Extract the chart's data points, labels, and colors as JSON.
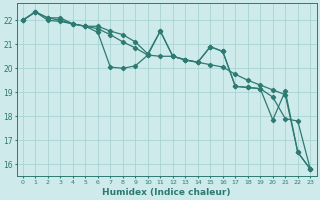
{
  "xlabel": "Humidex (Indice chaleur)",
  "ylabel": "",
  "background_color": "#ceeaea",
  "grid_color": "#aad4d4",
  "line_color": "#2d7a72",
  "x_values": [
    0,
    1,
    2,
    3,
    4,
    5,
    6,
    7,
    8,
    9,
    10,
    11,
    12,
    13,
    14,
    15,
    16,
    17,
    18,
    19,
    20,
    21,
    22,
    23
  ],
  "series1": [
    22.0,
    22.35,
    22.1,
    22.1,
    21.85,
    21.75,
    21.75,
    21.55,
    21.4,
    21.1,
    20.6,
    21.55,
    20.5,
    20.35,
    20.25,
    20.9,
    20.7,
    19.25,
    19.2,
    19.15,
    18.8,
    17.9,
    17.8,
    15.8
  ],
  "series2": [
    22.0,
    22.35,
    22.1,
    22.0,
    21.85,
    21.75,
    21.65,
    21.4,
    21.1,
    20.85,
    20.55,
    20.5,
    20.5,
    20.35,
    20.25,
    20.15,
    20.05,
    19.75,
    19.5,
    19.3,
    19.1,
    18.9,
    16.5,
    15.8
  ],
  "series3": [
    22.0,
    22.35,
    22.0,
    21.95,
    21.85,
    21.75,
    21.5,
    20.05,
    20.0,
    20.1,
    20.55,
    21.55,
    20.5,
    20.35,
    20.25,
    20.9,
    20.7,
    19.25,
    19.2,
    19.15,
    17.85,
    19.05,
    16.5,
    15.8
  ],
  "ylim": [
    15.5,
    22.7
  ],
  "yticks": [
    16,
    17,
    18,
    19,
    20,
    21,
    22
  ],
  "marker": "D",
  "markersize": 2.2,
  "linewidth": 0.9
}
